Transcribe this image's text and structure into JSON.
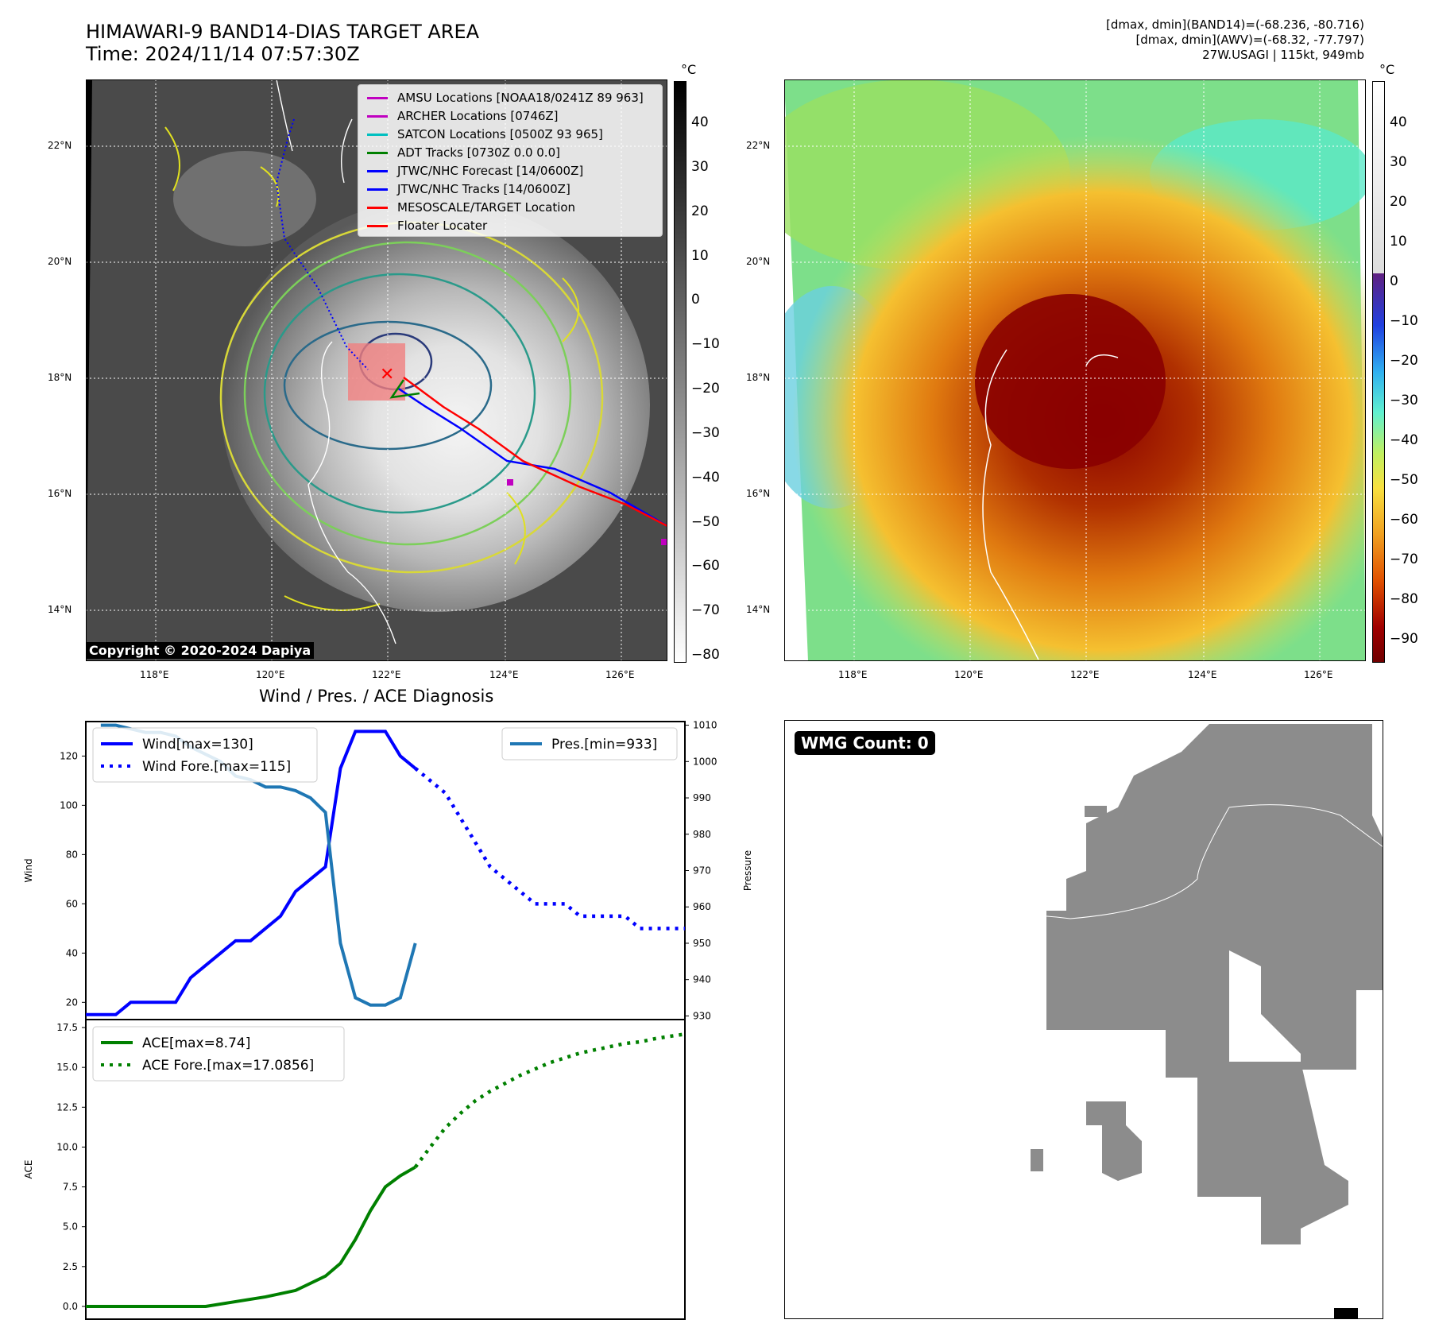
{
  "header": {
    "title_line1": "HIMAWARI-9 BAND14-DIAS TARGET AREA",
    "title_line2": "Time: 2024/11/14 07:57:30Z",
    "info_line1": "[dmax, dmin](BAND14)=(-68.236, -80.716)",
    "info_line2": "[dmax, dmin](AWV)=(-68.32, -77.797)",
    "info_line3": "27W.USAGI | 115kt, 949mb"
  },
  "map_axes": {
    "lat_labels": [
      "22°N",
      "20°N",
      "18°N",
      "16°N",
      "14°N"
    ],
    "lon_labels": [
      "118°E",
      "120°E",
      "122°E",
      "124°E",
      "126°E"
    ],
    "unit": "°C"
  },
  "colorbar_ir": {
    "ticks": [
      "40",
      "30",
      "20",
      "10",
      "0",
      "−10",
      "−20",
      "−30",
      "−40",
      "−50",
      "−60",
      "−70",
      "−80"
    ]
  },
  "colorbar_awv": {
    "ticks": [
      "40",
      "30",
      "20",
      "10",
      "0",
      "−10",
      "−20",
      "−30",
      "−40",
      "−50",
      "−60",
      "−70",
      "−80",
      "−90"
    ]
  },
  "map_legend": [
    {
      "label": "AMSU Locations [NOAA18/0241Z 89 963]",
      "color": "#c000c0"
    },
    {
      "label": "ARCHER Locations [0746Z]",
      "color": "#c000c0"
    },
    {
      "label": "SATCON Locations [0500Z 93 965]",
      "color": "#00c0c0"
    },
    {
      "label": "ADT Tracks [0730Z 0.0 0.0]",
      "color": "#008000"
    },
    {
      "label": "JTWC/NHC Forecast [14/0600Z]",
      "color": "#0000ff"
    },
    {
      "label": "JTWC/NHC Tracks [14/0600Z]",
      "color": "#0000ff"
    },
    {
      "label": "MESOSCALE/TARGET Location",
      "color": "#ff0000"
    },
    {
      "label": "Floater Locater",
      "color": "#ff0000"
    }
  ],
  "copyright": "Copyright © 2020-2024 Dapiya",
  "wmg": {
    "label": "WMG Count: 0"
  },
  "chart_data": [
    {
      "type": "line",
      "title": "Wind / Pres. / ACE Diagnosis",
      "ylabel": "Wind",
      "ylabel_right": "Pressure",
      "ylim": [
        13,
        134
      ],
      "ylim_right": [
        929,
        1011
      ],
      "xlim": [
        0,
        40
      ],
      "yticks": [
        20,
        40,
        60,
        80,
        100,
        120
      ],
      "yticks_right": [
        930,
        940,
        950,
        960,
        970,
        980,
        990,
        1000,
        1010
      ],
      "legend_left": [
        "Wind[max=130]",
        "Wind Fore.[max=115]"
      ],
      "legend_right": [
        "Pres.[min=933]"
      ],
      "series": [
        {
          "name": "Wind[max=130]",
          "style": "solid",
          "color": "#0000ff",
          "x": [
            0,
            1,
            2,
            3,
            4,
            5,
            6,
            7,
            8,
            9,
            10,
            11,
            12,
            13,
            14,
            15,
            16,
            17,
            18,
            19,
            20,
            21,
            22
          ],
          "values": [
            15,
            15,
            15,
            20,
            20,
            20,
            20,
            30,
            35,
            40,
            45,
            45,
            50,
            55,
            65,
            70,
            75,
            115,
            130,
            130,
            130,
            120,
            115
          ]
        },
        {
          "name": "Wind Fore.[max=115]",
          "style": "dotted",
          "color": "#0000ff",
          "x": [
            22,
            23,
            24,
            25,
            26,
            27,
            28,
            29,
            30,
            31,
            32,
            33,
            34,
            35,
            36,
            37,
            38,
            39,
            40
          ],
          "values": [
            115,
            110,
            105,
            95,
            85,
            75,
            70,
            65,
            60,
            60,
            60,
            55,
            55,
            55,
            55,
            50,
            50,
            50,
            50
          ]
        },
        {
          "name": "Pres.[min=933]",
          "style": "solid",
          "color": "#1f77b4",
          "axis": "right",
          "x": [
            1,
            2,
            3,
            4,
            5,
            6,
            7,
            8,
            9,
            10,
            11,
            12,
            13,
            14,
            15,
            16,
            17,
            18,
            19,
            20,
            21,
            22
          ],
          "values": [
            1010,
            1010,
            1009,
            1008,
            1008,
            1007,
            1004,
            1002,
            1000,
            996,
            995,
            993,
            993,
            992,
            990,
            986,
            950,
            935,
            933,
            933,
            935,
            950
          ]
        }
      ]
    },
    {
      "type": "line",
      "ylabel": "ACE",
      "ylim": [
        -0.8,
        18
      ],
      "xlim": [
        0,
        40
      ],
      "yticks": [
        0.0,
        2.5,
        5.0,
        7.5,
        10.0,
        12.5,
        15.0,
        17.5
      ],
      "ytick_labels": [
        "0.0",
        "2.5",
        "5.0",
        "7.5",
        "10.0",
        "12.5",
        "15.0",
        "17.5"
      ],
      "legend": [
        "ACE[max=8.74]",
        "ACE Fore.[max=17.0856]"
      ],
      "series": [
        {
          "name": "ACE[max=8.74]",
          "style": "solid",
          "color": "#008000",
          "x": [
            0,
            2,
            4,
            6,
            8,
            10,
            12,
            14,
            16,
            17,
            18,
            19,
            20,
            21,
            22
          ],
          "values": [
            0,
            0,
            0,
            0,
            0,
            0.3,
            0.6,
            1.0,
            1.9,
            2.7,
            4.2,
            6.0,
            7.5,
            8.2,
            8.74
          ]
        },
        {
          "name": "ACE Fore.[max=17.0856]",
          "style": "dotted",
          "color": "#008000",
          "x": [
            22,
            23,
            24,
            25,
            26,
            27,
            28,
            29,
            30,
            31,
            32,
            33,
            34,
            35,
            36,
            37,
            38,
            39,
            40
          ],
          "values": [
            8.74,
            10.0,
            11.2,
            12.1,
            12.9,
            13.5,
            14.0,
            14.5,
            14.9,
            15.3,
            15.6,
            15.9,
            16.1,
            16.3,
            16.5,
            16.6,
            16.8,
            16.95,
            17.0856
          ]
        }
      ]
    }
  ]
}
